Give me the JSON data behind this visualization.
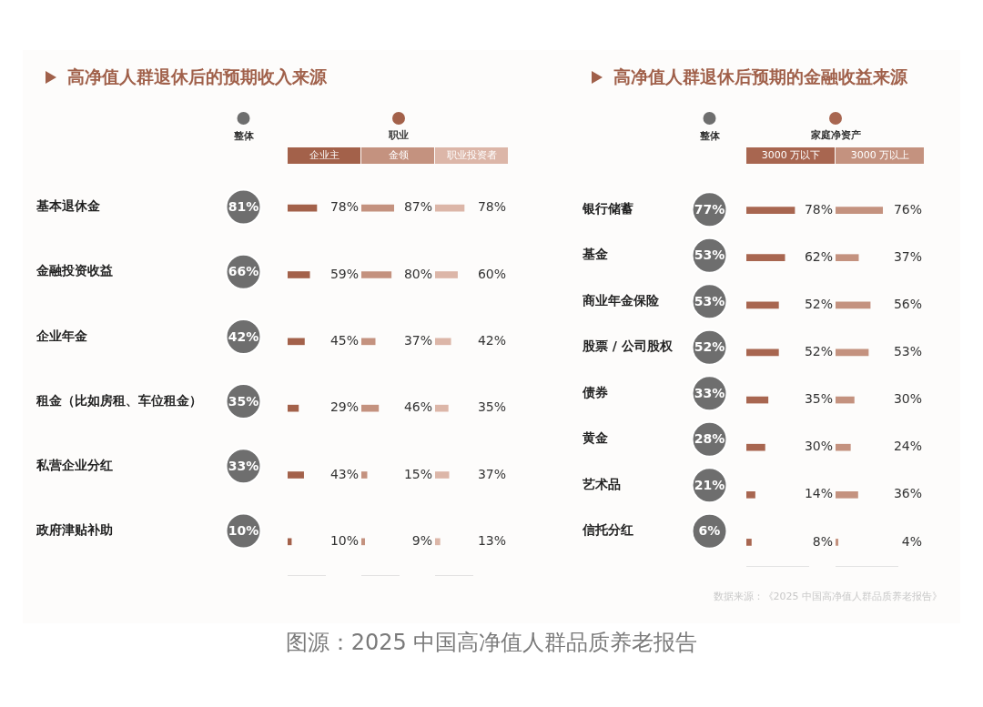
{
  "chart_data": [
    {
      "type": "other",
      "title": "高净值人群退休后的预期收入来源",
      "legend": "top",
      "categories": [
        "基本退休金",
        "金融投资收益",
        "企业年金",
        "租金（比如房租、车位租金）",
        "私营企业分红",
        "政府津贴补助"
      ],
      "series": [
        {
          "name": "整体",
          "marker": "circle",
          "color": "#6e6e6e",
          "values": [
            81,
            66,
            42,
            35,
            33,
            10
          ],
          "value_labels": [
            "81%",
            "66%",
            "42%",
            "35%",
            "33%",
            "10%"
          ]
        }
      ]
    },
    {
      "type": "bar",
      "orientation": "horizontal",
      "legend": "top",
      "legend_title": "职业",
      "xlim": [
        0,
        100
      ],
      "tick_labels": false,
      "categories": [
        null,
        null,
        null,
        null,
        null,
        null
      ],
      "series": [
        {
          "name": "企业主",
          "color": "#a3614a",
          "values": [
            78,
            59,
            45,
            29,
            43,
            10
          ],
          "value_labels": [
            "78%",
            "59%",
            "45%",
            "29%",
            "43%",
            "10%"
          ]
        }
      ]
    },
    {
      "type": "bar",
      "orientation": "horizontal",
      "legend": "top",
      "xlim": [
        0,
        100
      ],
      "tick_labels": false,
      "categories": [
        null,
        null,
        null,
        null,
        null,
        null
      ],
      "series": [
        {
          "name": "金领",
          "color": "#c4927f",
          "values": [
            87,
            80,
            37,
            46,
            15,
            9
          ],
          "value_labels": [
            "87%",
            "80%",
            "37%",
            "46%",
            "15%",
            "9%"
          ]
        }
      ]
    },
    {
      "type": "bar",
      "orientation": "horizontal",
      "legend": "top",
      "xlim": [
        0,
        100
      ],
      "tick_labels": false,
      "categories": [
        null,
        null,
        null,
        null,
        null,
        null
      ],
      "series": [
        {
          "name": "职业投资者",
          "color": "#dcb6a8",
          "values": [
            78,
            60,
            42,
            35,
            37,
            13
          ],
          "value_labels": [
            "78%",
            "60%",
            "42%",
            "35%",
            "37%",
            "13%"
          ]
        }
      ]
    },
    {
      "type": "other",
      "title": "高净值人群退休后预期的金融收益来源",
      "legend": "top",
      "categories": [
        "银行储蓄",
        "基金",
        "商业年金保险",
        "股票 / 公司股权",
        "债券",
        "黄金",
        "艺术品",
        "信托分红"
      ],
      "series": [
        {
          "name": "整体",
          "marker": "circle",
          "color": "#6e6e6e",
          "values": [
            77,
            53,
            53,
            52,
            33,
            28,
            21,
            6
          ],
          "value_labels": [
            "77%",
            "53%",
            "53%",
            "52%",
            "33%",
            "28%",
            "21%",
            "6%"
          ]
        }
      ]
    },
    {
      "type": "bar",
      "orientation": "horizontal",
      "legend": "top",
      "legend_title": "家庭净资产",
      "xlim": [
        0,
        100
      ],
      "tick_labels": false,
      "categories": [
        null,
        null,
        null,
        null,
        null,
        null,
        null,
        null
      ],
      "series": [
        {
          "name": "3000 万以下",
          "color": "#a86650",
          "values": [
            78,
            62,
            52,
            52,
            35,
            30,
            14,
            8
          ],
          "value_labels": [
            "78%",
            "62%",
            "52%",
            "52%",
            "35%",
            "30%",
            "14%",
            "8%"
          ]
        }
      ]
    },
    {
      "type": "bar",
      "orientation": "horizontal",
      "legend": "top",
      "xlim": [
        0,
        100
      ],
      "tick_labels": false,
      "categories": [
        null,
        null,
        null,
        null,
        null,
        null,
        null,
        null
      ],
      "series": [
        {
          "name": "3000 万以上",
          "color": "#c4927f",
          "values": [
            76,
            37,
            56,
            53,
            30,
            24,
            36,
            4
          ],
          "value_labels": [
            "76%",
            "37%",
            "56%",
            "53%",
            "30%",
            "24%",
            "36%",
            "4%"
          ]
        }
      ],
      "annotations": [
        "数据来源：《2025 中国高净值人群品质养老报告》",
        "图源：2025 中国高净值人群品质养老报告"
      ]
    }
  ]
}
